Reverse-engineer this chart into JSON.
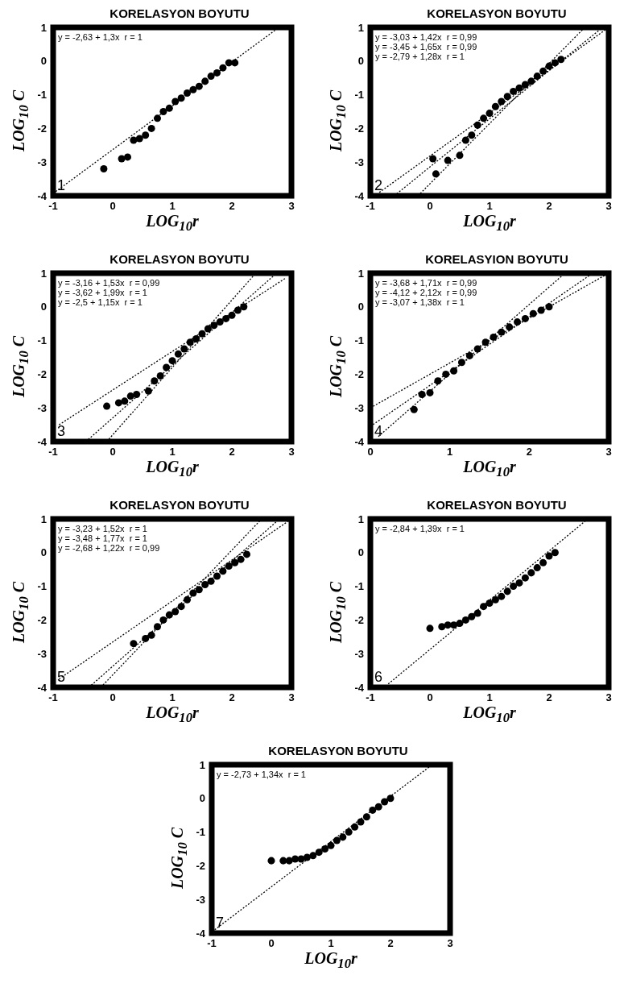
{
  "chart_data": [
    {
      "type": "scatter",
      "title": "KORELASYON BOYUTU",
      "xlabel": "LOG$_{10}$r",
      "ylabel": "LOG$_{10}$ C",
      "xlim": [
        -1,
        3
      ],
      "xticks": [
        -1,
        0,
        1,
        2,
        3
      ],
      "ylim": [
        -4,
        1
      ],
      "yticks": [
        -4,
        -3,
        -2,
        -1,
        0,
        1
      ],
      "line_style": "dotted",
      "annotations": [
        "y = -2,63 + 1,3x  r = 1",
        "1"
      ],
      "series": [
        {
          "marker": "circle",
          "color": "#000000",
          "x": [
            -0.15,
            0.15,
            0.25,
            0.35,
            0.45,
            0.55,
            0.65,
            0.75,
            0.85,
            0.95,
            1.05,
            1.15,
            1.25,
            1.35,
            1.45,
            1.55,
            1.65,
            1.75,
            1.85,
            1.95,
            2.05
          ],
          "values": [
            -3.2,
            -2.9,
            -2.85,
            -2.35,
            -2.3,
            -2.2,
            -2.0,
            -1.7,
            -1.5,
            -1.4,
            -1.2,
            -1.1,
            -0.95,
            -0.85,
            -0.75,
            -0.6,
            -0.45,
            -0.35,
            -0.2,
            -0.05,
            -0.05
          ]
        },
        {
          "type": "line",
          "marker": "none",
          "color": "#000000",
          "x": [
            -1,
            2.79
          ],
          "values": [
            -3.93,
            1
          ]
        }
      ]
    },
    {
      "type": "scatter",
      "title": "KORELASYON BOYUTU",
      "xlabel": "LOG$_{10}$r",
      "ylabel": "LOG$_{10}$ C",
      "xlim": [
        -1,
        3
      ],
      "xticks": [
        -1,
        0,
        1,
        2,
        3
      ],
      "ylim": [
        -4,
        1
      ],
      "yticks": [
        -4,
        -3,
        -2,
        -1,
        0,
        1
      ],
      "line_style": "dotted",
      "annotations": [
        "y = -3,03 + 1,42x  r = 0,99",
        "y = -3,45 + 1,65x  r = 0,99",
        "y = -2,79 + 1,28x  r = 1",
        "2"
      ],
      "series": [
        {
          "marker": "circle",
          "color": "#000000",
          "x": [
            0.05,
            0.1,
            0.3,
            0.5,
            0.6,
            0.7,
            0.8,
            0.9,
            1.0,
            1.1,
            1.2,
            1.3,
            1.4,
            1.5,
            1.6,
            1.7,
            1.8,
            1.9,
            2.0,
            2.1,
            2.2
          ],
          "values": [
            -2.9,
            -3.35,
            -2.95,
            -2.8,
            -2.35,
            -2.2,
            -1.9,
            -1.7,
            -1.55,
            -1.35,
            -1.2,
            -1.05,
            -0.9,
            -0.8,
            -0.7,
            -0.6,
            -0.45,
            -0.3,
            -0.15,
            -0.05,
            0.05
          ]
        },
        {
          "type": "line",
          "marker": "none",
          "color": "#000000",
          "x": [
            -0.85,
            3
          ],
          "values": [
            -3.9,
            1
          ]
        },
        {
          "type": "line",
          "marker": "none",
          "color": "#000000",
          "x": [
            -0.6,
            2.9
          ],
          "values": [
            -4,
            1
          ]
        },
        {
          "type": "line",
          "marker": "none",
          "color": "#000000",
          "x": [
            -0.2,
            2.6
          ],
          "values": [
            -4,
            1
          ]
        }
      ]
    },
    {
      "type": "scatter",
      "title": "KORELASYON BOYUTU",
      "xlabel": "LOG$_{10}$r",
      "ylabel": "LOG$_{10}$ C",
      "xlim": [
        -1,
        3
      ],
      "xticks": [
        -1,
        0,
        1,
        2,
        3
      ],
      "ylim": [
        -4,
        1
      ],
      "yticks": [
        -4,
        -3,
        -2,
        -1,
        0,
        1
      ],
      "line_style": "dotted",
      "annotations": [
        "y = -3,16 + 1,53x  r = 0,99",
        "y = -3,62 + 1,99x  r = 1",
        "y = -2,5 + 1,15x  r = 1",
        "3"
      ],
      "series": [
        {
          "marker": "circle",
          "color": "#000000",
          "x": [
            -0.1,
            0.1,
            0.2,
            0.3,
            0.4,
            0.6,
            0.7,
            0.8,
            0.9,
            1.0,
            1.1,
            1.2,
            1.3,
            1.4,
            1.5,
            1.6,
            1.7,
            1.8,
            1.9,
            2.0,
            2.1,
            2.2
          ],
          "values": [
            -2.95,
            -2.85,
            -2.8,
            -2.65,
            -2.6,
            -2.5,
            -2.2,
            -2.05,
            -1.8,
            -1.6,
            -1.4,
            -1.25,
            -1.05,
            -0.95,
            -0.8,
            -0.65,
            -0.55,
            -0.45,
            -0.35,
            -0.25,
            -0.1,
            0
          ]
        },
        {
          "type": "line",
          "marker": "none",
          "color": "#000000",
          "x": [
            -0.9,
            2.9
          ],
          "values": [
            -3.5,
            0.85
          ]
        },
        {
          "type": "line",
          "marker": "none",
          "color": "#000000",
          "x": [
            -0.45,
            2.75
          ],
          "values": [
            -4,
            1
          ]
        },
        {
          "type": "line",
          "marker": "none",
          "color": "#000000",
          "x": [
            -0.1,
            2.4
          ],
          "values": [
            -4,
            1
          ]
        }
      ]
    },
    {
      "type": "scatter",
      "title": "KORELASYION BOYUTU",
      "xlabel": "LOG$_{10}$r",
      "ylabel": "LOG$_{10}$ C",
      "xlim": [
        0,
        3
      ],
      "xticks": [
        0,
        1,
        2,
        3
      ],
      "ylim": [
        -4,
        1
      ],
      "yticks": [
        -4,
        -3,
        -2,
        -1,
        0,
        1
      ],
      "line_style": "dotted",
      "annotations": [
        "y = -3,68 + 1,71x  r = 0,99",
        "y = -4,12 + 2,12x  r = 0,99",
        "y = -3,07 + 1,38x  r = 1",
        "4"
      ],
      "series": [
        {
          "marker": "circle",
          "color": "#000000",
          "x": [
            0.55,
            0.65,
            0.75,
            0.85,
            0.95,
            1.05,
            1.15,
            1.25,
            1.35,
            1.45,
            1.55,
            1.65,
            1.75,
            1.85,
            1.95,
            2.05,
            2.15,
            2.25
          ],
          "values": [
            -3.05,
            -2.6,
            -2.55,
            -2.2,
            -2.0,
            -1.9,
            -1.65,
            -1.45,
            -1.25,
            -1.05,
            -0.9,
            -0.75,
            -0.6,
            -0.45,
            -0.35,
            -0.2,
            -0.1,
            0
          ]
        },
        {
          "type": "line",
          "marker": "none",
          "color": "#000000",
          "x": [
            0,
            3
          ],
          "values": [
            -3.0,
            1.0
          ]
        },
        {
          "type": "line",
          "marker": "none",
          "color": "#000000",
          "x": [
            0,
            2.8
          ],
          "values": [
            -3.55,
            1
          ]
        },
        {
          "type": "line",
          "marker": "none",
          "color": "#000000",
          "x": [
            0.1,
            2.45
          ],
          "values": [
            -3.85,
            1
          ]
        }
      ]
    },
    {
      "type": "scatter",
      "title": "KORELASYON BOYUTU",
      "xlabel": "LOG$_{10}$r",
      "ylabel": "LOG$_{10}$ C",
      "xlim": [
        -1,
        3
      ],
      "xticks": [
        -1,
        0,
        1,
        2,
        3
      ],
      "ylim": [
        -4,
        1
      ],
      "yticks": [
        -4,
        -3,
        -2,
        -1,
        0,
        1
      ],
      "line_style": "dotted",
      "annotations": [
        "y = -3,23 + 1,52x  r = 1",
        "y = -3,48 + 1,77x  r = 1",
        "y = -2,68 + 1,22x  r = 0,99",
        "5"
      ],
      "series": [
        {
          "marker": "circle",
          "color": "#000000",
          "x": [
            0.35,
            0.55,
            0.65,
            0.75,
            0.85,
            0.95,
            1.05,
            1.15,
            1.25,
            1.35,
            1.45,
            1.55,
            1.65,
            1.75,
            1.85,
            1.95,
            2.05,
            2.15,
            2.25
          ],
          "values": [
            -2.7,
            -2.55,
            -2.45,
            -2.2,
            -2.0,
            -1.85,
            -1.75,
            -1.6,
            -1.4,
            -1.2,
            -1.1,
            -0.95,
            -0.85,
            -0.7,
            -0.55,
            -0.4,
            -0.3,
            -0.2,
            -0.05
          ]
        },
        {
          "type": "line",
          "marker": "none",
          "color": "#000000",
          "x": [
            -0.9,
            3
          ],
          "values": [
            -3.75,
            1
          ]
        },
        {
          "type": "line",
          "marker": "none",
          "color": "#000000",
          "x": [
            -0.4,
            2.8
          ],
          "values": [
            -4,
            1
          ]
        },
        {
          "type": "line",
          "marker": "none",
          "color": "#000000",
          "x": [
            -0.2,
            2.5
          ],
          "values": [
            -4,
            1
          ]
        }
      ]
    },
    {
      "type": "scatter",
      "title": "KORELASYON BOYUTU",
      "xlabel": "LOG$_{10}$r",
      "ylabel": "LOG$_{10}$ C",
      "xlim": [
        -1,
        3
      ],
      "xticks": [
        -1,
        0,
        1,
        2,
        3
      ],
      "ylim": [
        -4,
        1
      ],
      "yticks": [
        -4,
        -3,
        -2,
        -1,
        0,
        1
      ],
      "line_style": "dotted",
      "annotations": [
        "y = -2,84 + 1,39x  r = 1",
        "6"
      ],
      "series": [
        {
          "marker": "circle",
          "color": "#000000",
          "x": [
            0,
            0.2,
            0.3,
            0.4,
            0.5,
            0.6,
            0.7,
            0.8,
            0.9,
            1.0,
            1.1,
            1.2,
            1.3,
            1.4,
            1.5,
            1.6,
            1.7,
            1.8,
            1.9,
            2.0,
            2.1
          ],
          "values": [
            -2.25,
            -2.2,
            -2.15,
            -2.15,
            -2.1,
            -2.0,
            -1.9,
            -1.8,
            -1.6,
            -1.5,
            -1.4,
            -1.3,
            -1.15,
            -1.0,
            -0.9,
            -0.75,
            -0.6,
            -0.45,
            -0.3,
            -0.1,
            0
          ]
        },
        {
          "type": "line",
          "marker": "none",
          "color": "#000000",
          "x": [
            -0.7,
            2.65
          ],
          "values": [
            -3.9,
            1
          ]
        }
      ]
    },
    {
      "type": "scatter",
      "title": "KORELASYON BOYUTU",
      "xlabel": "LOG$_{10}$r",
      "ylabel": "LOG$_{10}$ C",
      "xlim": [
        -1,
        3
      ],
      "xticks": [
        -1,
        0,
        1,
        2,
        3
      ],
      "ylim": [
        -4,
        1
      ],
      "yticks": [
        -4,
        -3,
        -2,
        -1,
        0,
        1
      ],
      "line_style": "dotted",
      "annotations": [
        "y = -2,73 + 1,34x  r = 1",
        "7"
      ],
      "series": [
        {
          "marker": "circle",
          "color": "#000000",
          "x": [
            0,
            0.2,
            0.3,
            0.4,
            0.5,
            0.6,
            0.7,
            0.8,
            0.9,
            1.0,
            1.1,
            1.2,
            1.3,
            1.4,
            1.5,
            1.6,
            1.7,
            1.8,
            1.9,
            2.0
          ],
          "values": [
            -1.85,
            -1.85,
            -1.85,
            -1.8,
            -1.8,
            -1.75,
            -1.7,
            -1.6,
            -1.5,
            -1.4,
            -1.25,
            -1.15,
            -1.0,
            -0.85,
            -0.7,
            -0.55,
            -0.35,
            -0.25,
            -0.1,
            0
          ]
        },
        {
          "type": "line",
          "marker": "none",
          "color": "#000000",
          "x": [
            -0.95,
            2.7
          ],
          "values": [
            -3.9,
            1
          ]
        }
      ]
    }
  ]
}
